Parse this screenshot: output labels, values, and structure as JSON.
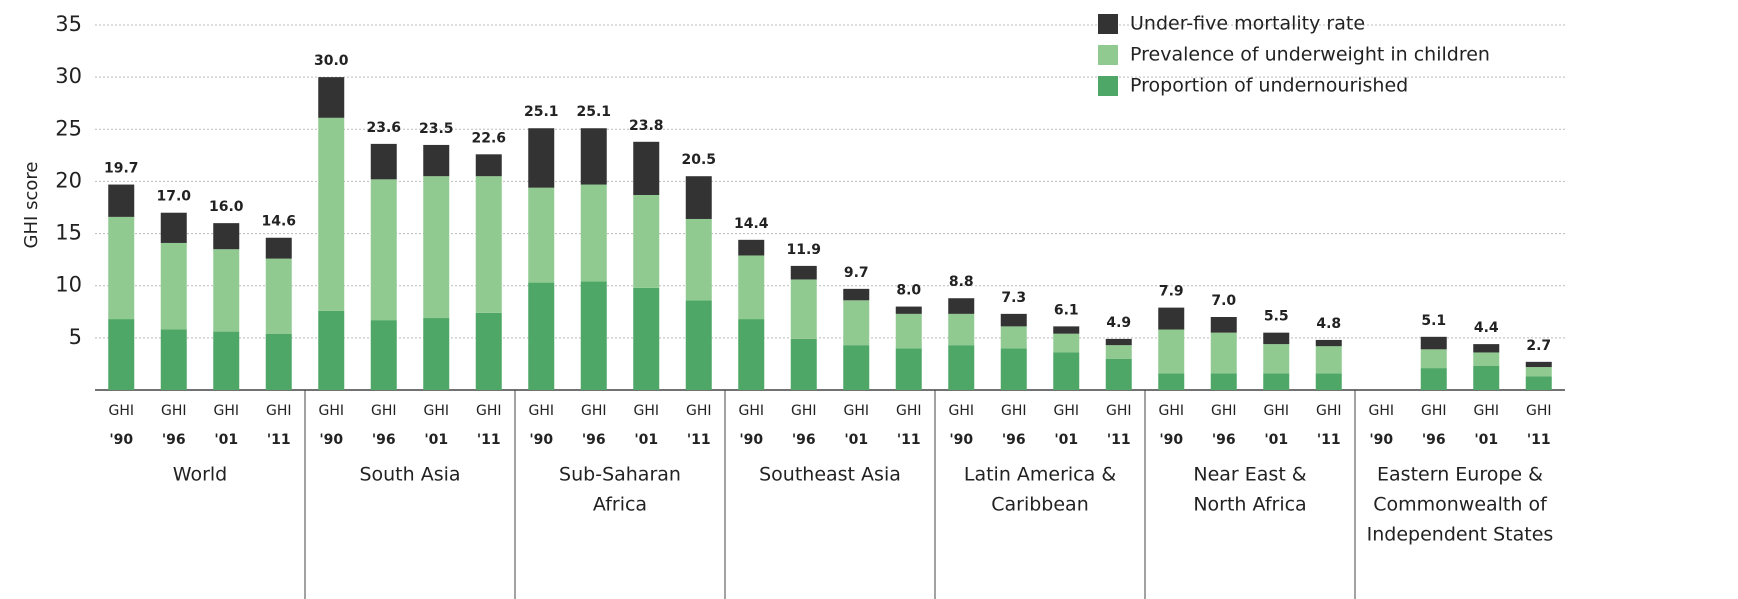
{
  "chart_data": {
    "type": "stacked_bar",
    "y_label": "GHI score",
    "categories": [
      [
        "GHI",
        "'90"
      ],
      [
        "GHI",
        "'96"
      ],
      [
        "GHI",
        "'01"
      ],
      [
        "GHI",
        "'11"
      ],
      [
        "GHI",
        "'90"
      ],
      [
        "GHI",
        "'96"
      ],
      [
        "GHI",
        "'01"
      ],
      [
        "GHI",
        "'11"
      ],
      [
        "GHI",
        "'90"
      ],
      [
        "GHI",
        "'96"
      ],
      [
        "GHI",
        "'01"
      ],
      [
        "GHI",
        "'11"
      ],
      [
        "GHI",
        "'90"
      ],
      [
        "GHI",
        "'96"
      ],
      [
        "GHI",
        "'01"
      ],
      [
        "GHI",
        "'11"
      ],
      [
        "GHI",
        "'90"
      ],
      [
        "GHI",
        "'96"
      ],
      [
        "GHI",
        "'01"
      ],
      [
        "GHI",
        "'11"
      ],
      [
        "GHI",
        "'90"
      ],
      [
        "GHI",
        "'96"
      ],
      [
        "GHI",
        "'01"
      ],
      [
        "GHI",
        "'11"
      ],
      [
        "GHI",
        "'90"
      ],
      [
        "GHI",
        "'96"
      ],
      [
        "GHI",
        "'01"
      ],
      [
        "GHI",
        "'11"
      ]
    ],
    "groups": [
      [
        "World"
      ],
      [
        "South Asia"
      ],
      [
        "Sub-Saharan",
        "Africa"
      ],
      [
        "Southeast Asia"
      ],
      [
        "Latin America &",
        "Caribbean"
      ],
      [
        "Near East &",
        "North Africa"
      ],
      [
        "Eastern Europe &",
        "Commonwealth of",
        "Independent States"
      ]
    ],
    "series": [
      {
        "name": "Proportion of undernourished",
        "color": "#4ea766",
        "values": [
          6.8,
          5.8,
          5.6,
          5.4,
          7.6,
          6.7,
          6.9,
          7.4,
          10.3,
          10.4,
          9.8,
          8.6,
          6.8,
          4.9,
          4.3,
          4.0,
          4.3,
          4.0,
          3.6,
          3.0,
          1.6,
          1.6,
          1.6,
          1.6,
          null,
          2.1,
          2.3,
          1.3
        ]
      },
      {
        "name": "Prevalence of underweight in children",
        "color": "#90ca90",
        "values": [
          9.8,
          8.3,
          7.9,
          7.2,
          18.5,
          13.5,
          13.6,
          13.1,
          9.1,
          9.3,
          8.9,
          7.8,
          6.1,
          5.7,
          4.3,
          3.3,
          3.0,
          2.1,
          1.8,
          1.3,
          4.2,
          3.9,
          2.8,
          2.6,
          null,
          1.8,
          1.3,
          0.9
        ]
      },
      {
        "name": "Under-five mortality rate",
        "color": "#333333",
        "values": [
          3.1,
          2.9,
          2.5,
          2.0,
          3.9,
          3.4,
          3.0,
          2.1,
          5.7,
          5.4,
          5.1,
          4.1,
          1.5,
          1.3,
          1.1,
          0.7,
          1.5,
          1.2,
          0.7,
          0.6,
          2.1,
          1.5,
          1.1,
          0.6,
          null,
          1.2,
          0.8,
          0.5
        ]
      }
    ],
    "totals": [
      19.7,
      17.0,
      16.0,
      14.6,
      30.0,
      23.6,
      23.5,
      22.6,
      25.1,
      25.1,
      23.8,
      20.5,
      14.4,
      11.9,
      9.7,
      8.0,
      8.8,
      7.3,
      6.1,
      4.9,
      7.9,
      7.0,
      5.5,
      4.8,
      null,
      5.1,
      4.4,
      2.7
    ],
    "total_labels": [
      "19.7",
      "17.0",
      "16.0",
      "14.6",
      "30.0",
      "23.6",
      "23.5",
      "22.6",
      "25.1",
      "25.1",
      "23.8",
      "20.5",
      "14.4",
      "11.9",
      "9.7",
      "8.0",
      "8.8",
      "7.3",
      "6.1",
      "4.9",
      "7.9",
      "7.0",
      "5.5",
      "4.8",
      null,
      "5.1",
      "4.4",
      "2.7"
    ],
    "ylim": [
      0,
      35
    ],
    "yticks": [
      5,
      10,
      15,
      20,
      25,
      30,
      35
    ],
    "grid": true,
    "legend": "top-right"
  }
}
